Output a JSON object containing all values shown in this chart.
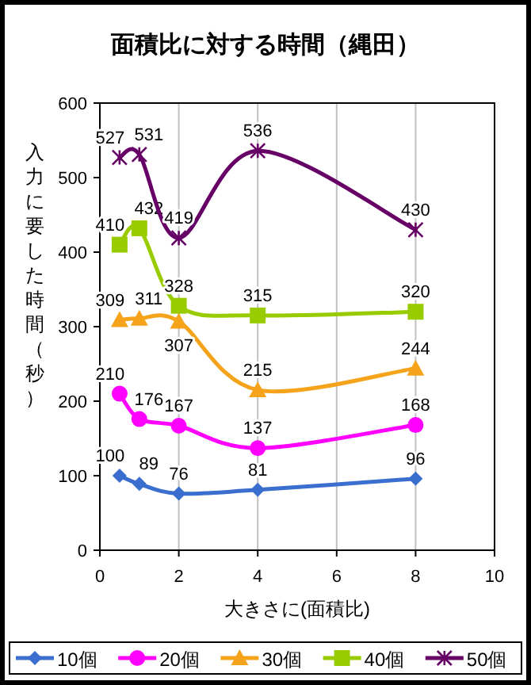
{
  "chart_data": {
    "type": "line",
    "title": "面積比に対する時間（縄田）",
    "xlabel": "大きさに(面積比)",
    "ylabel": "入力に要した時間（秒）",
    "x": [
      0.5,
      1,
      2,
      4,
      8
    ],
    "series": [
      {
        "name": "10個",
        "color": "#3a6fcf",
        "marker": "diamond",
        "values": [
          100,
          89,
          76,
          81,
          96
        ]
      },
      {
        "name": "20個",
        "color": "#ff00ff",
        "marker": "circle",
        "values": [
          210,
          176,
          167,
          137,
          168
        ]
      },
      {
        "name": "30個",
        "color": "#f5a31a",
        "marker": "triangle",
        "values": [
          309,
          311,
          307,
          215,
          244
        ]
      },
      {
        "name": "40個",
        "color": "#99cc00",
        "marker": "square",
        "values": [
          410,
          432,
          328,
          315,
          320
        ]
      },
      {
        "name": "50個",
        "color": "#660066",
        "marker": "cross",
        "values": [
          527,
          531,
          419,
          536,
          430
        ]
      }
    ],
    "xlim": [
      0,
      10
    ],
    "xticks": [
      0,
      2,
      4,
      6,
      8,
      10
    ],
    "ylim": [
      0,
      600
    ],
    "yticks": [
      0,
      100,
      200,
      300,
      400,
      500,
      600
    ],
    "grid": "x",
    "legend": "bottom",
    "data_labels": true
  }
}
